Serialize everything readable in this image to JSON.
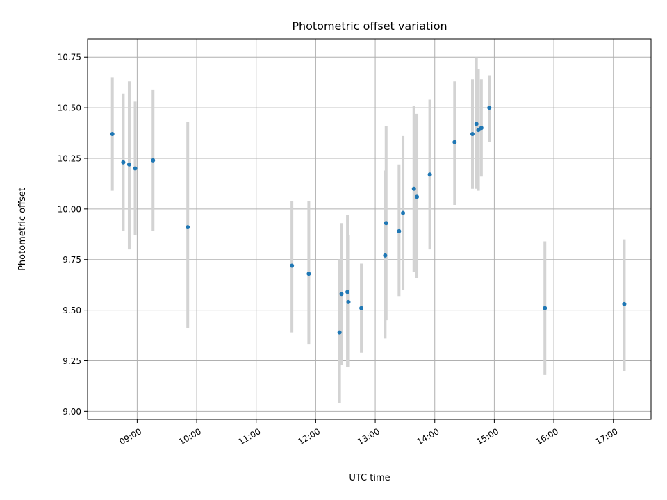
{
  "chart_data": {
    "type": "scatter",
    "title": "Photometric offset variation",
    "xlabel": "UTC time",
    "ylabel": "Photometric offset",
    "x_ticks": [
      "09:00",
      "10:00",
      "11:00",
      "12:00",
      "13:00",
      "14:00",
      "15:00",
      "16:00",
      "17:00"
    ],
    "y_ticks": [
      "9.00",
      "9.25",
      "9.50",
      "9.75",
      "10.00",
      "10.25",
      "10.50",
      "10.75"
    ],
    "xlim": [
      "08:10",
      "17:38"
    ],
    "ylim": [
      8.96,
      10.84
    ],
    "grid": true,
    "colors": {
      "points": "#1f77b4",
      "error_bars": "#d3d3d3",
      "grid": "#b0b0b0"
    },
    "points": [
      {
        "x": "08:35",
        "y": 10.37,
        "ylow": 10.09,
        "yhigh": 10.65
      },
      {
        "x": "08:46",
        "y": 10.23,
        "ylow": 9.89,
        "yhigh": 10.57
      },
      {
        "x": "08:52",
        "y": 10.22,
        "ylow": 9.8,
        "yhigh": 10.63
      },
      {
        "x": "08:58",
        "y": 10.2,
        "ylow": 9.87,
        "yhigh": 10.53
      },
      {
        "x": "09:16",
        "y": 10.24,
        "ylow": 9.89,
        "yhigh": 10.59
      },
      {
        "x": "09:51",
        "y": 9.91,
        "ylow": 9.41,
        "yhigh": 10.43
      },
      {
        "x": "11:36",
        "y": 9.72,
        "ylow": 9.39,
        "yhigh": 10.04
      },
      {
        "x": "11:53",
        "y": 9.68,
        "ylow": 9.33,
        "yhigh": 10.04
      },
      {
        "x": "12:24",
        "y": 9.39,
        "ylow": 9.04,
        "yhigh": 9.75
      },
      {
        "x": "12:26",
        "y": 9.58,
        "ylow": 9.23,
        "yhigh": 9.93
      },
      {
        "x": "12:32",
        "y": 9.59,
        "ylow": 9.22,
        "yhigh": 9.97
      },
      {
        "x": "12:33",
        "y": 9.54,
        "ylow": 9.22,
        "yhigh": 9.87
      },
      {
        "x": "12:46",
        "y": 9.51,
        "ylow": 9.29,
        "yhigh": 9.73
      },
      {
        "x": "13:10",
        "y": 9.77,
        "ylow": 9.36,
        "yhigh": 10.19
      },
      {
        "x": "13:11",
        "y": 9.93,
        "ylow": 9.45,
        "yhigh": 10.41
      },
      {
        "x": "13:24",
        "y": 9.89,
        "ylow": 9.57,
        "yhigh": 10.22
      },
      {
        "x": "13:28",
        "y": 9.98,
        "ylow": 9.6,
        "yhigh": 10.36
      },
      {
        "x": "13:39",
        "y": 10.1,
        "ylow": 9.69,
        "yhigh": 10.51
      },
      {
        "x": "13:42",
        "y": 10.06,
        "ylow": 9.66,
        "yhigh": 10.47
      },
      {
        "x": "13:55",
        "y": 10.17,
        "ylow": 9.8,
        "yhigh": 10.54
      },
      {
        "x": "14:20",
        "y": 10.33,
        "ylow": 10.02,
        "yhigh": 10.63
      },
      {
        "x": "14:38",
        "y": 10.37,
        "ylow": 10.1,
        "yhigh": 10.64
      },
      {
        "x": "14:42",
        "y": 10.42,
        "ylow": 10.1,
        "yhigh": 10.75
      },
      {
        "x": "14:44",
        "y": 10.39,
        "ylow": 10.09,
        "yhigh": 10.69
      },
      {
        "x": "14:47",
        "y": 10.4,
        "ylow": 10.16,
        "yhigh": 10.64
      },
      {
        "x": "14:55",
        "y": 10.5,
        "ylow": 10.33,
        "yhigh": 10.66
      },
      {
        "x": "15:51",
        "y": 9.51,
        "ylow": 9.18,
        "yhigh": 9.84
      },
      {
        "x": "17:11",
        "y": 9.53,
        "ylow": 9.2,
        "yhigh": 9.85
      }
    ]
  }
}
